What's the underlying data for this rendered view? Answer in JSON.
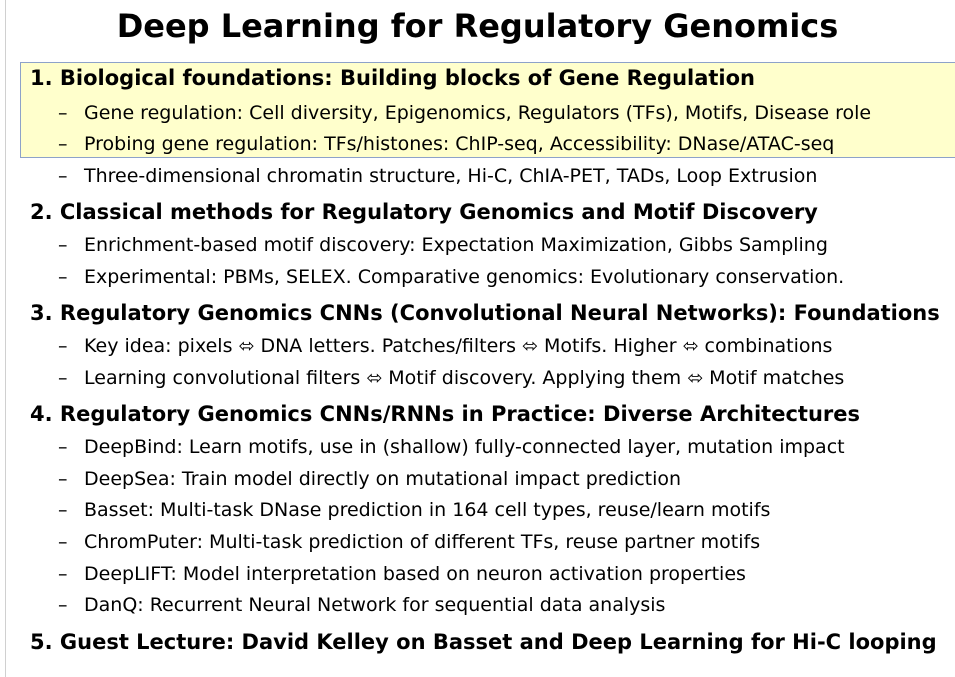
{
  "title": "Deep Learning for Regulatory Genomics",
  "sections": [
    {
      "heading": "1. Biological foundations: Building blocks of Gene Regulation",
      "bullets": [
        "Gene regulation: Cell diversity, Epigenomics, Regulators (TFs), Motifs, Disease role",
        "Probing gene regulation: TFs/histones: ChIP-seq, Accessibility: DNase/ATAC-seq",
        "Three-dimensional chromatin structure, Hi-C, ChIA-PET, TADs, Loop Extrusion"
      ]
    },
    {
      "heading": "2. Classical methods for Regulatory Genomics and Motif Discovery",
      "bullets": [
        "Enrichment-based motif discovery: Expectation Maximization, Gibbs Sampling",
        "Experimental: PBMs, SELEX. Comparative genomics: Evolutionary conservation."
      ]
    },
    {
      "heading": "3. Regulatory Genomics CNNs (Convolutional Neural Networks): Foundations",
      "bullets": [
        "Key idea: pixels ⬄ DNA letters. Patches/filters ⬄ Motifs. Higher ⬄ combinations",
        "Learning convolutional filters ⬄ Motif discovery. Applying them ⬄ Motif matches"
      ]
    },
    {
      "heading": "4. Regulatory Genomics CNNs/RNNs in Practice: Diverse Architectures",
      "bullets": [
        "DeepBind: Learn motifs, use in (shallow) fully-connected layer, mutation impact",
        "DeepSea: Train model directly on mutational impact prediction",
        "Basset: Multi-task DNase prediction in 164 cell types, reuse/learn motifs",
        "ChromPuter: Multi-task prediction of different TFs, reuse partner motifs",
        "DeepLIFT: Model interpretation based on neuron activation properties",
        "DanQ: Recurrent Neural Network for sequential data analysis"
      ]
    },
    {
      "heading": "5. Guest Lecture: David Kelley on Basset and Deep Learning for Hi-C looping",
      "bullets": []
    }
  ],
  "bullet_marker": "–",
  "highlight_color": "#ffffcc",
  "highlight_border_color": "#8da2c9"
}
